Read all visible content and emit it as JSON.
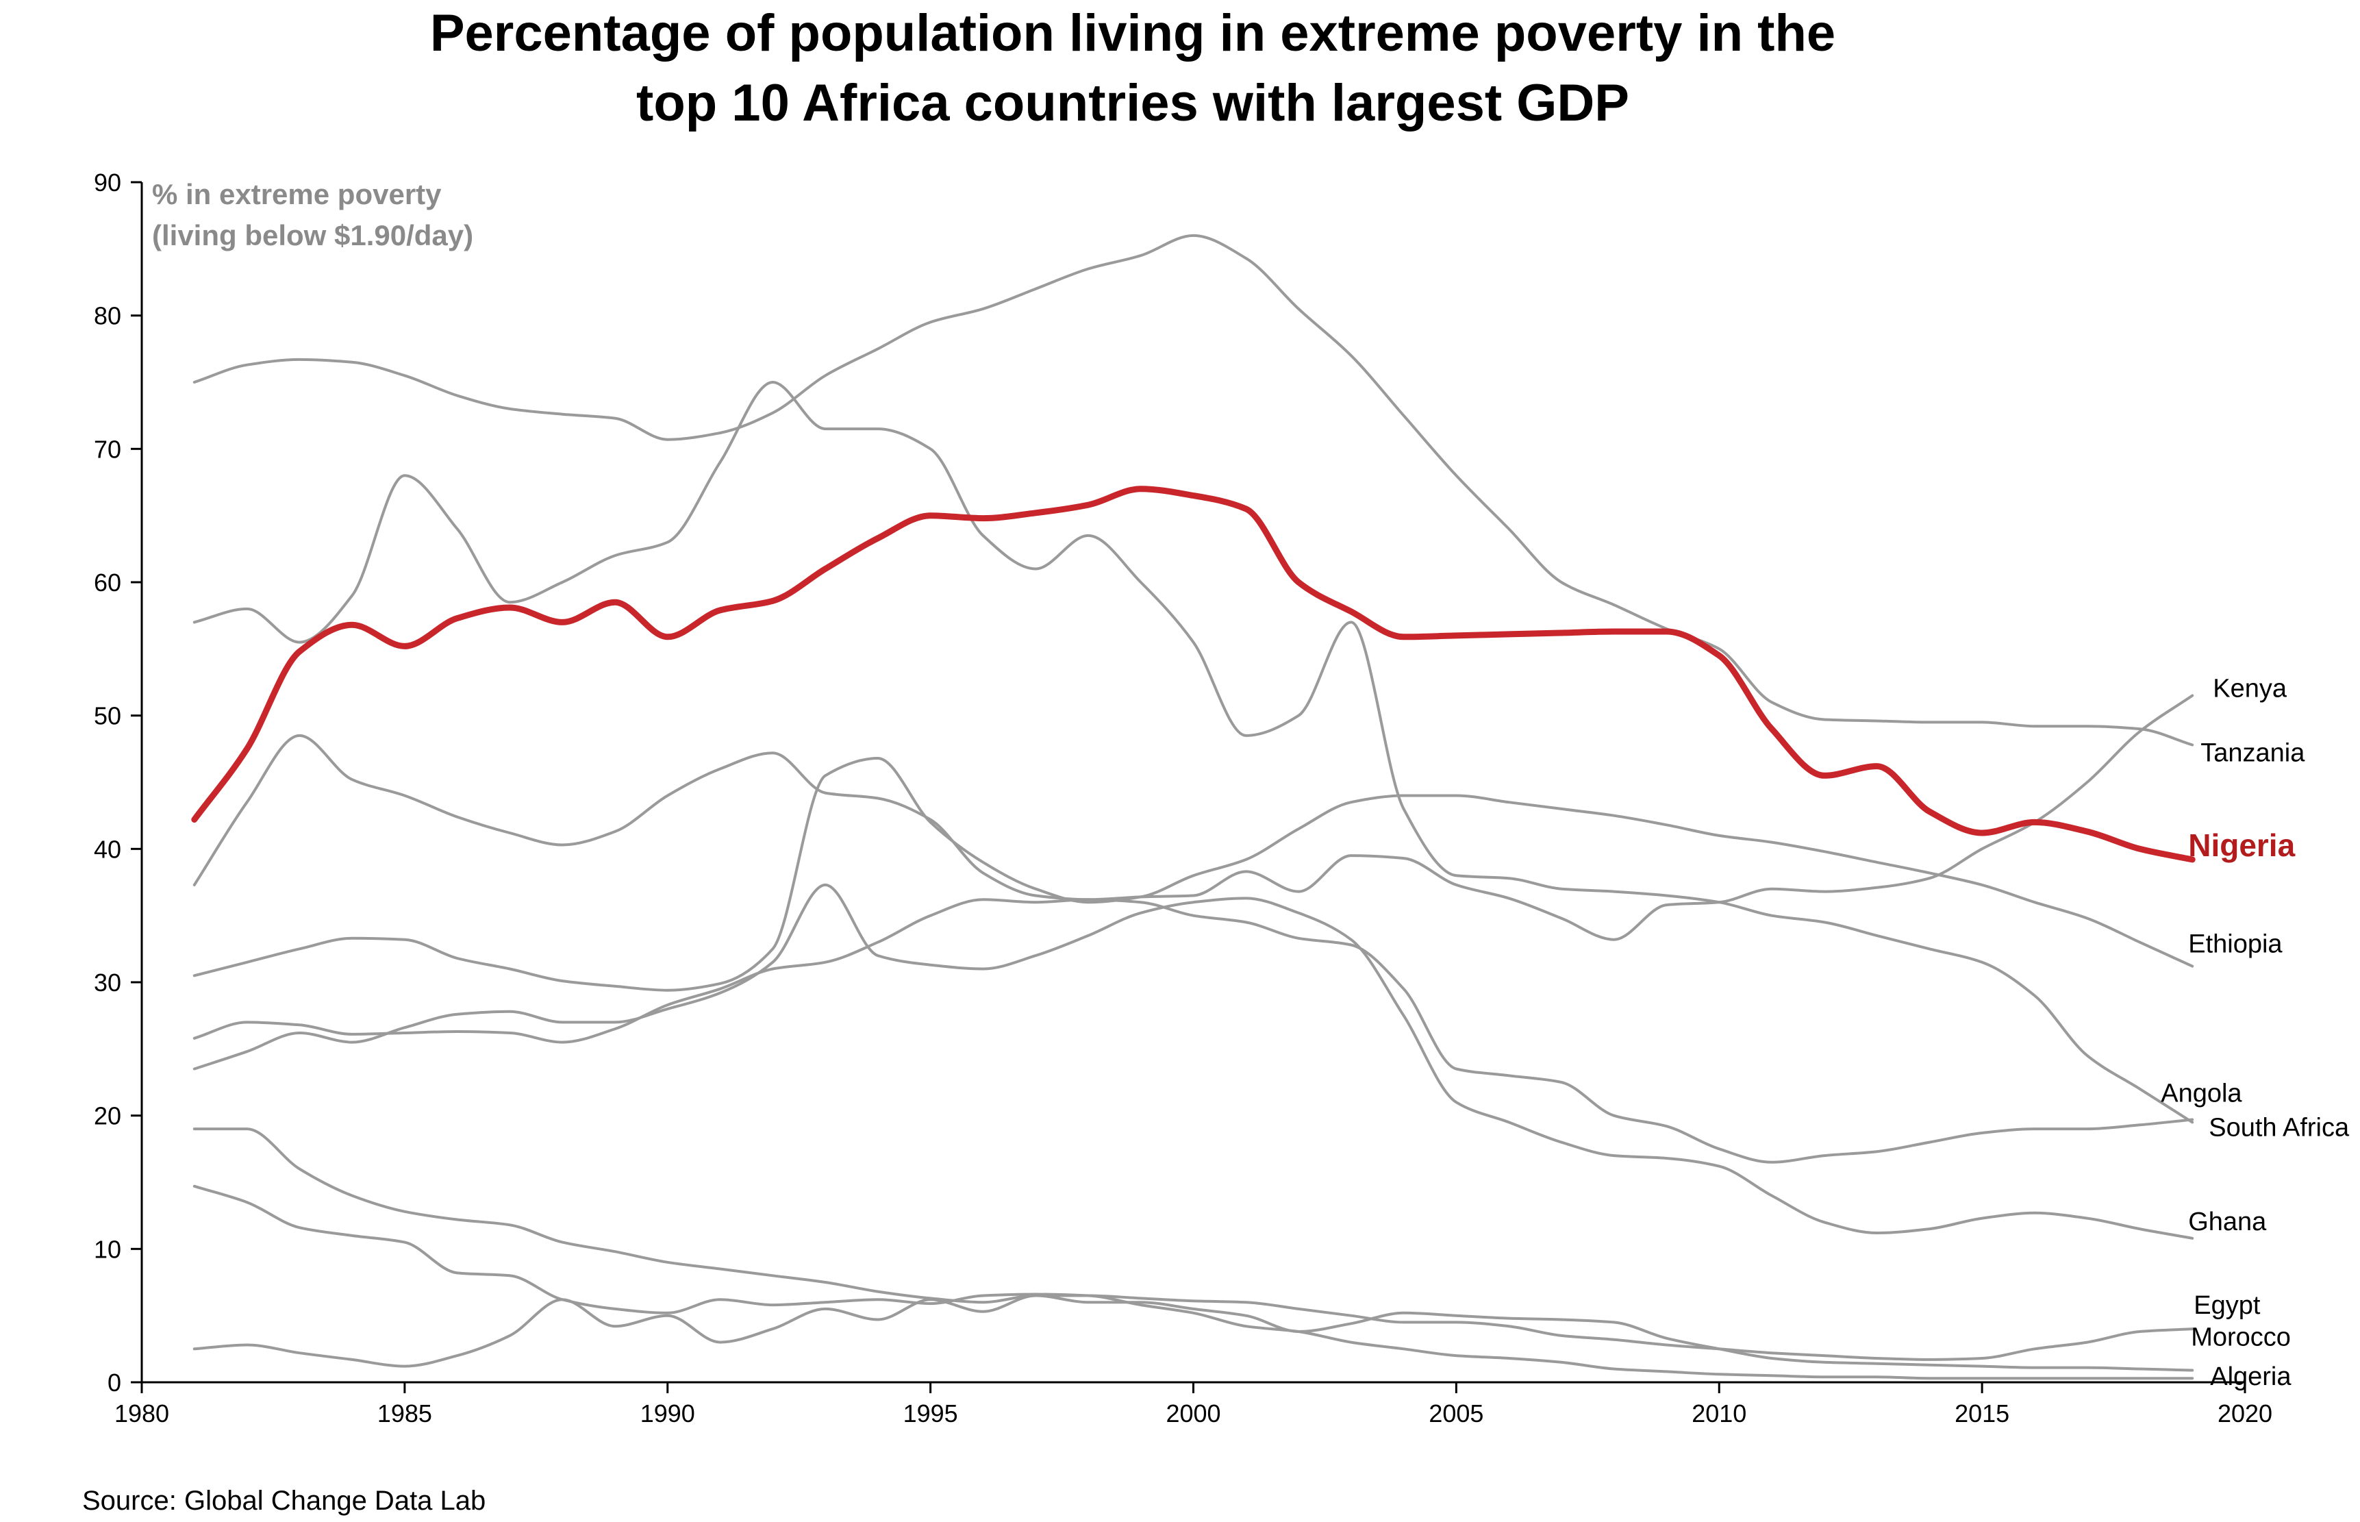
{
  "chart_data": {
    "type": "line",
    "title": "Percentage of population living in extreme poverty in the top 10 Africa countries with largest GDP",
    "title_lines": [
      "Percentage of population living in extreme poverty in the",
      "top 10 Africa countries with largest GDP"
    ],
    "ylabel_lines": [
      "% in extreme poverty",
      "(living below $1.90/day)"
    ],
    "xlabel": "",
    "xlim": [
      1980,
      2020
    ],
    "ylim": [
      0,
      90
    ],
    "x_ticks": [
      1980,
      1985,
      1990,
      1995,
      2000,
      2005,
      2010,
      2015,
      2020
    ],
    "y_ticks": [
      0,
      10,
      20,
      30,
      40,
      50,
      60,
      70,
      80,
      90
    ],
    "x_tick_labels": [
      "1980",
      "1985",
      "1990",
      "1995",
      "2000",
      "2005",
      "2010",
      "2015",
      "2020"
    ],
    "y_tick_labels": [
      "0",
      "10",
      "20",
      "30",
      "40",
      "50",
      "60",
      "70",
      "80",
      "90"
    ],
    "grid": false,
    "legend": "direct labels at line ends",
    "highlight": "Nigeria",
    "colors": {
      "highlight": "#c8262b",
      "highlight_label": "#b31c1c",
      "other": "#9a9a9a",
      "ylabel": "#8a8a8a"
    },
    "x": [
      1981,
      1982,
      1983,
      1984,
      1985,
      1986,
      1987,
      1988,
      1989,
      1990,
      1991,
      1992,
      1993,
      1994,
      1995,
      1996,
      1997,
      1998,
      1999,
      2000,
      2001,
      2002,
      2003,
      2004,
      2005,
      2006,
      2007,
      2008,
      2009,
      2010,
      2011,
      2012,
      2013,
      2014,
      2015,
      2016,
      2017,
      2018,
      2019
    ],
    "series": [
      {
        "name": "Angola",
        "values": [
          57,
          58,
          55.5,
          59,
          68,
          64,
          58.5,
          60,
          62,
          63,
          69,
          75,
          71.5,
          71.5,
          70,
          63.5,
          61,
          63.5,
          60,
          55.5,
          48.5,
          50,
          57,
          43,
          38,
          37.8,
          37,
          36.8,
          36.5,
          36,
          35,
          34.5,
          33.5,
          32.5,
          31.5,
          29,
          24.5,
          22,
          19.5
        ]
      },
      {
        "name": "Tanzania",
        "values": [
          75,
          76.3,
          76.7,
          76.5,
          75.5,
          74,
          73,
          72.6,
          72.3,
          70.7,
          71.2,
          72.7,
          75.5,
          77.5,
          79.5,
          80.5,
          82,
          83.5,
          84.5,
          86,
          84.3,
          80.5,
          77,
          72.5,
          68,
          64,
          60,
          58.3,
          56.5,
          55,
          51,
          49.7,
          49.6,
          49.5,
          49.5,
          49.2,
          49.2,
          49,
          47.8
        ]
      },
      {
        "name": "Nigeria",
        "values": [
          42.2,
          47.5,
          54.8,
          56.8,
          55.2,
          57.3,
          58.1,
          57,
          58.5,
          55.9,
          57.9,
          58.6,
          61,
          63.3,
          65,
          64.8,
          65.2,
          65.8,
          67,
          66.5,
          65.5,
          60,
          57.8,
          55.9,
          56,
          56.1,
          56.2,
          56.3,
          56.3,
          54.5,
          49,
          45.5,
          46.2,
          42.8,
          41.2,
          42,
          41.3,
          40,
          39.2
        ]
      },
      {
        "name": "Kenya",
        "values": [
          37.3,
          43.5,
          48.5,
          45.2,
          44,
          42.4,
          41.2,
          40.3,
          41.3,
          44,
          46,
          47.2,
          44.2,
          43.8,
          42.2,
          38.2,
          36.5,
          36.2,
          36.4,
          36.5,
          38.3,
          36.8,
          39.5,
          39.3,
          37.3,
          36.3,
          34.8,
          33.2,
          35.8,
          36,
          37,
          36.8,
          37.1,
          37.8,
          40,
          42,
          45,
          48.8,
          51.5
        ]
      },
      {
        "name": "Ethiopia",
        "values": [
          30.5,
          31.5,
          32.5,
          33.3,
          33.2,
          31.8,
          31,
          30.1,
          29.7,
          29.4,
          29.9,
          32.5,
          45.5,
          46.8,
          42,
          39,
          37,
          36,
          36.4,
          38,
          39.2,
          41.5,
          43.5,
          44,
          44,
          43.5,
          43,
          42.5,
          41.8,
          41,
          40.5,
          39.8,
          39,
          38.2,
          37.3,
          36,
          34.8,
          33,
          31.2
        ]
      },
      {
        "name": "South Africa",
        "values": [
          25.8,
          27,
          26.8,
          26.1,
          26.2,
          26.3,
          26.2,
          25.5,
          26.5,
          28.3,
          29.5,
          31,
          31.5,
          33,
          35,
          36.2,
          36,
          36.2,
          36,
          35,
          34.5,
          33.3,
          32.8,
          29.5,
          23.5,
          23,
          22.5,
          20,
          19.2,
          17.5,
          16.5,
          17,
          17.3,
          18,
          18.7,
          19,
          19,
          19.3,
          19.7
        ]
      },
      {
        "name": "Ghana",
        "values": [
          23.5,
          24.8,
          26.2,
          25.5,
          26.6,
          27.6,
          27.8,
          27,
          27,
          28,
          29.2,
          31.5,
          37.3,
          32,
          31.3,
          31,
          32,
          33.5,
          35.2,
          36,
          36.3,
          35.2,
          33.2,
          27.5,
          21,
          19.5,
          18,
          17,
          16.8,
          16.2,
          14,
          12,
          11.2,
          11.5,
          12.3,
          12.7,
          12.3,
          11.5,
          10.8
        ]
      },
      {
        "name": "Egypt",
        "values": [
          2.5,
          2.8,
          2.2,
          1.7,
          1.2,
          2,
          3.5,
          6.2,
          4.2,
          5,
          3,
          4,
          5.5,
          4.7,
          6.2,
          5.3,
          6.5,
          6.5,
          6.3,
          6.1,
          6,
          5.5,
          5,
          4.5,
          4.5,
          4.2,
          3.5,
          3.2,
          2.8,
          2.5,
          2.2,
          2,
          1.8,
          1.7,
          1.8,
          2.5,
          3,
          3.8,
          4
        ]
      },
      {
        "name": "Morocco",
        "values": [
          19,
          19,
          16,
          14,
          12.8,
          12.2,
          11.8,
          10.5,
          9.8,
          9,
          8.5,
          8,
          7.5,
          6.8,
          6.3,
          6,
          6.5,
          6,
          6,
          5.5,
          5,
          3.8,
          4.4,
          5.2,
          5,
          4.8,
          4.7,
          4.5,
          3.3,
          2.5,
          1.8,
          1.5,
          1.4,
          1.3,
          1.2,
          1.1,
          1.1,
          1,
          0.9
        ]
      },
      {
        "name": "Algeria",
        "values": [
          14.7,
          13.5,
          11.6,
          11,
          10.5,
          8.2,
          8,
          6.2,
          5.5,
          5.2,
          6.2,
          5.8,
          6,
          6.2,
          5.9,
          6.5,
          6.6,
          6.5,
          5.8,
          5.2,
          4.2,
          3.8,
          3,
          2.5,
          2,
          1.8,
          1.5,
          1,
          0.8,
          0.6,
          0.5,
          0.4,
          0.4,
          0.3,
          0.3,
          0.3,
          0.3,
          0.3,
          0.3
        ]
      }
    ]
  },
  "source_text": "Source: Global Change Data Lab"
}
